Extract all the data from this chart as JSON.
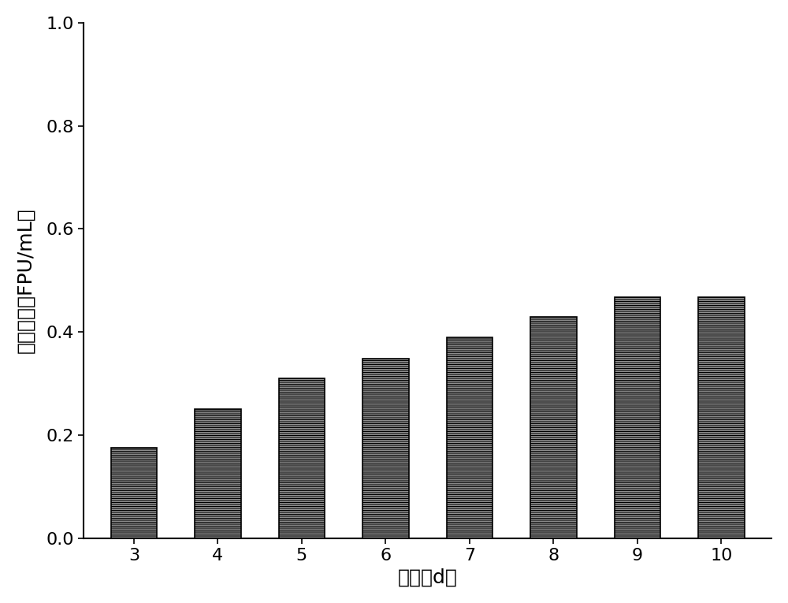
{
  "categories": [
    3,
    4,
    5,
    6,
    7,
    8,
    9,
    10
  ],
  "values": [
    0.175,
    0.25,
    0.31,
    0.348,
    0.39,
    0.43,
    0.468,
    0.468
  ],
  "bar_color": "#ffffff",
  "bar_edgecolor": "#000000",
  "hatch_pattern": "----------",
  "title": "",
  "xlabel": "时间（d）",
  "ylabel": "滤纸酶活（FPU/mL）",
  "ylim": [
    0.0,
    1.0
  ],
  "yticks": [
    0.0,
    0.2,
    0.4,
    0.6,
    0.8,
    1.0
  ],
  "xlabel_fontsize": 18,
  "ylabel_fontsize": 18,
  "tick_fontsize": 16,
  "bar_width": 0.55,
  "background_color": "#ffffff",
  "linewidth": 1.2
}
